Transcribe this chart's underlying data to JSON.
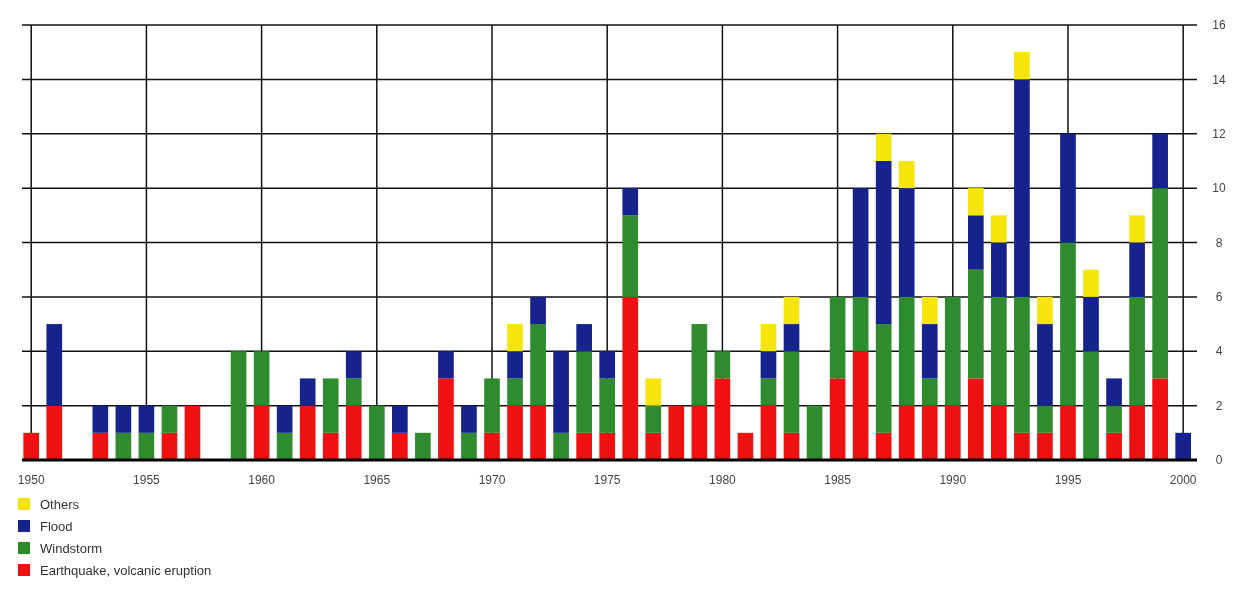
{
  "chart_data": {
    "type": "bar",
    "stacked": true,
    "x": [
      1950,
      1951,
      1952,
      1953,
      1954,
      1955,
      1956,
      1957,
      1958,
      1959,
      1960,
      1961,
      1962,
      1963,
      1964,
      1965,
      1966,
      1967,
      1968,
      1969,
      1970,
      1971,
      1972,
      1973,
      1974,
      1975,
      1976,
      1977,
      1978,
      1979,
      1980,
      1981,
      1982,
      1983,
      1984,
      1985,
      1986,
      1987,
      1988,
      1989,
      1990,
      1991,
      1992,
      1993,
      1994,
      1995,
      1996,
      1997,
      1998,
      1999,
      2000
    ],
    "series": [
      {
        "name": "Earthquake, volcanic eruption",
        "color": "#ee1111",
        "values": [
          1,
          2,
          0,
          1,
          0,
          0,
          1,
          2,
          0,
          0,
          2,
          0,
          2,
          1,
          2,
          0,
          1,
          0,
          3,
          0,
          1,
          2,
          2,
          0,
          1,
          1,
          6,
          1,
          2,
          2,
          3,
          1,
          2,
          1,
          0,
          3,
          4,
          1,
          2,
          2,
          2,
          3,
          2,
          1,
          1,
          2,
          0,
          1,
          2,
          3,
          0
        ]
      },
      {
        "name": "Windstorm",
        "color": "#2e8b2e",
        "values": [
          0,
          0,
          0,
          0,
          1,
          1,
          1,
          0,
          0,
          4,
          2,
          1,
          0,
          2,
          1,
          2,
          0,
          1,
          0,
          1,
          2,
          1,
          3,
          1,
          3,
          2,
          3,
          1,
          0,
          3,
          1,
          0,
          1,
          3,
          2,
          3,
          2,
          4,
          4,
          1,
          4,
          4,
          4,
          5,
          1,
          6,
          4,
          1,
          4,
          7,
          0
        ]
      },
      {
        "name": "Flood",
        "color": "#16238c",
        "values": [
          0,
          3,
          0,
          1,
          1,
          1,
          0,
          0,
          0,
          0,
          0,
          1,
          1,
          0,
          1,
          0,
          1,
          0,
          1,
          1,
          0,
          1,
          1,
          3,
          1,
          1,
          1,
          0,
          0,
          0,
          0,
          0,
          1,
          1,
          0,
          0,
          4,
          6,
          4,
          2,
          0,
          2,
          2,
          8,
          3,
          4,
          2,
          1,
          2,
          2,
          1
        ]
      },
      {
        "name": "Others",
        "color": "#f5e50a",
        "values": [
          0,
          0,
          0,
          0,
          0,
          0,
          0,
          0,
          0,
          0,
          0,
          0,
          0,
          0,
          0,
          0,
          0,
          0,
          0,
          0,
          0,
          1,
          0,
          0,
          0,
          0,
          0,
          1,
          0,
          0,
          0,
          0,
          1,
          1,
          0,
          0,
          0,
          1,
          1,
          1,
          0,
          1,
          1,
          1,
          1,
          0,
          1,
          0,
          1,
          0,
          0
        ]
      }
    ],
    "xlim": [
      1949.6,
      2000.6
    ],
    "xticks": [
      1950,
      1955,
      1960,
      1965,
      1970,
      1975,
      1980,
      1985,
      1990,
      1995,
      2000
    ],
    "ylim": [
      0,
      16
    ],
    "yticks": [
      0,
      2,
      4,
      6,
      8,
      10,
      12,
      14,
      16
    ],
    "grid": true,
    "legend": "bottom"
  }
}
